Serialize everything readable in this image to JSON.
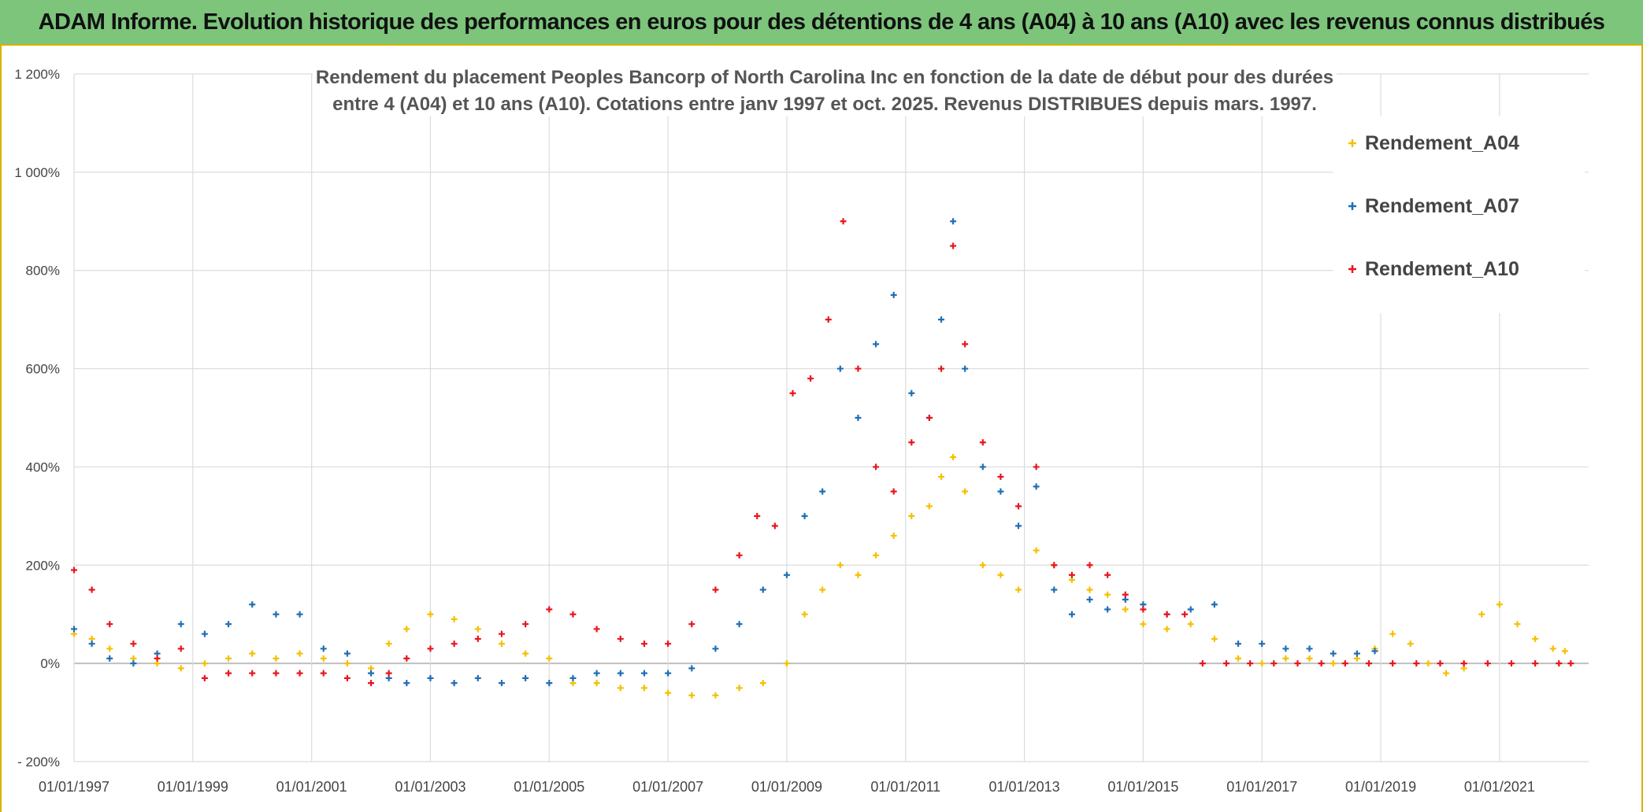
{
  "header": {
    "title": "ADAM Informe. Evolution historique des performances en euros pour des détentions de 4 ans (A04) à 10 ans (A10) avec les revenus connus distribués"
  },
  "chart_data": {
    "type": "scatter",
    "title": [
      "Rendement du placement Peoples Bancorp of North Carolina Inc en fonction de la date de début pour des durées",
      "entre 4 (A04) et 10 ans (A10). Cotations entre janv 1997 et oct. 2025. Revenus DISTRIBUES depuis mars. 1997."
    ],
    "xlabel": "",
    "ylabel": "",
    "ylim": [
      -200,
      1200
    ],
    "xlim": [
      1997.0,
      2022.5
    ],
    "yticks": [
      -200,
      0,
      200,
      400,
      600,
      800,
      1000,
      1200
    ],
    "ytick_labels": [
      "- 200%",
      "0%",
      "200%",
      "400%",
      "600%",
      "800%",
      "1 000%",
      "1 200%"
    ],
    "xticks": [
      1997,
      1999,
      2001,
      2003,
      2005,
      2007,
      2009,
      2011,
      2013,
      2015,
      2017,
      2019,
      2021
    ],
    "xtick_labels": [
      "01/01/1997",
      "01/01/1999",
      "01/01/2001",
      "01/01/2003",
      "01/01/2005",
      "01/01/2007",
      "01/01/2009",
      "01/01/2011",
      "01/01/2013",
      "01/01/2015",
      "01/01/2017",
      "01/01/2019",
      "01/01/2021"
    ],
    "legend_position": "right",
    "series": [
      {
        "name": "Rendement_A04",
        "color": "#f5c000",
        "x": [
          1997.0,
          1997.3,
          1997.6,
          1998.0,
          1998.4,
          1998.8,
          1999.2,
          1999.6,
          2000.0,
          2000.4,
          2000.8,
          2001.2,
          2001.6,
          2002.0,
          2002.3,
          2002.6,
          2003.0,
          2003.4,
          2003.8,
          2004.2,
          2004.6,
          2005.0,
          2005.4,
          2005.8,
          2006.2,
          2006.6,
          2007.0,
          2007.4,
          2007.8,
          2008.2,
          2008.6,
          2009.0,
          2009.3,
          2009.6,
          2009.9,
          2010.2,
          2010.5,
          2010.8,
          2011.1,
          2011.4,
          2011.6,
          2011.8,
          2012.0,
          2012.3,
          2012.6,
          2012.9,
          2013.2,
          2013.5,
          2013.8,
          2014.1,
          2014.4,
          2014.7,
          2015.0,
          2015.4,
          2015.8,
          2016.2,
          2016.6,
          2017.0,
          2017.4,
          2017.8,
          2018.2,
          2018.6,
          2018.9,
          2019.2,
          2019.5,
          2019.8,
          2020.1,
          2020.4,
          2020.7,
          2021.0,
          2021.3,
          2021.6,
          2021.9,
          2022.1
        ],
        "y": [
          60,
          50,
          30,
          10,
          0,
          -10,
          0,
          10,
          20,
          10,
          20,
          10,
          0,
          -10,
          40,
          70,
          100,
          90,
          70,
          40,
          20,
          10,
          -40,
          -40,
          -50,
          -50,
          -60,
          -65,
          -65,
          -50,
          -40,
          0,
          100,
          150,
          200,
          180,
          220,
          260,
          300,
          320,
          380,
          420,
          350,
          200,
          180,
          150,
          230,
          200,
          170,
          150,
          140,
          110,
          80,
          70,
          80,
          50,
          10,
          0,
          10,
          10,
          0,
          10,
          30,
          60,
          40,
          0,
          -20,
          -10,
          100,
          120,
          80,
          50,
          30,
          25
        ]
      },
      {
        "name": "Rendement_A07",
        "color": "#1f6fb5",
        "x": [
          1997.0,
          1997.3,
          1997.6,
          1998.0,
          1998.4,
          1998.8,
          1999.2,
          1999.6,
          2000.0,
          2000.4,
          2000.8,
          2001.2,
          2001.6,
          2002.0,
          2002.3,
          2002.6,
          2003.0,
          2003.4,
          2003.8,
          2004.2,
          2004.6,
          2005.0,
          2005.4,
          2005.8,
          2006.2,
          2006.6,
          2007.0,
          2007.4,
          2007.8,
          2008.2,
          2008.6,
          2009.0,
          2009.3,
          2009.6,
          2009.9,
          2010.2,
          2010.5,
          2010.8,
          2011.1,
          2011.4,
          2011.6,
          2011.8,
          2012.0,
          2012.3,
          2012.6,
          2012.9,
          2013.2,
          2013.5,
          2013.8,
          2014.1,
          2014.4,
          2014.7,
          2015.0,
          2015.4,
          2015.8,
          2016.2,
          2016.6,
          2017.0,
          2017.4,
          2017.8,
          2018.2,
          2018.6,
          2018.9
        ],
        "y": [
          70,
          40,
          10,
          0,
          20,
          80,
          60,
          80,
          120,
          100,
          100,
          30,
          20,
          -20,
          -30,
          -40,
          -30,
          -40,
          -30,
          -40,
          -30,
          -40,
          -30,
          -20,
          -20,
          -20,
          -20,
          -10,
          30,
          80,
          150,
          180,
          300,
          350,
          600,
          500,
          650,
          750,
          550,
          500,
          700,
          900,
          600,
          400,
          350,
          280,
          360,
          150,
          100,
          130,
          110,
          130,
          120,
          100,
          110,
          120,
          40,
          40,
          30,
          30,
          20,
          20,
          25
        ]
      },
      {
        "name": "Rendement_A10",
        "color": "#e8161c",
        "x": [
          1997.0,
          1997.3,
          1997.6,
          1998.0,
          1998.4,
          1998.8,
          1999.2,
          1999.6,
          2000.0,
          2000.4,
          2000.8,
          2001.2,
          2001.6,
          2002.0,
          2002.3,
          2002.6,
          2003.0,
          2003.4,
          2003.8,
          2004.2,
          2004.6,
          2005.0,
          2005.4,
          2005.8,
          2006.2,
          2006.6,
          2007.0,
          2007.4,
          2007.8,
          2008.2,
          2008.5,
          2008.8,
          2009.1,
          2009.4,
          2009.7,
          2009.95,
          2010.2,
          2010.5,
          2010.8,
          2011.1,
          2011.4,
          2011.6,
          2011.8,
          2012.0,
          2012.3,
          2012.6,
          2012.9,
          2013.2,
          2013.5,
          2013.8,
          2014.1,
          2014.4,
          2014.7,
          2015.0,
          2015.4,
          2015.7,
          2016.0,
          2016.4,
          2016.8,
          2017.2,
          2017.6,
          2018.0,
          2018.4,
          2018.8,
          2019.2,
          2019.6,
          2020.0,
          2020.4,
          2020.8,
          2021.2,
          2021.6,
          2022.0,
          2022.2
        ],
        "y": [
          190,
          150,
          80,
          40,
          10,
          30,
          -30,
          -20,
          -20,
          -20,
          -20,
          -20,
          -30,
          -40,
          -20,
          10,
          30,
          40,
          50,
          60,
          80,
          110,
          100,
          70,
          50,
          40,
          40,
          80,
          150,
          220,
          300,
          280,
          550,
          580,
          700,
          900,
          600,
          400,
          350,
          450,
          500,
          600,
          850,
          650,
          450,
          380,
          320,
          400,
          200,
          180,
          200,
          180,
          140,
          110,
          100,
          100,
          0,
          0,
          0,
          0,
          0,
          0,
          0,
          0,
          0,
          0,
          0,
          0,
          0,
          0,
          0,
          0,
          0
        ]
      }
    ]
  }
}
